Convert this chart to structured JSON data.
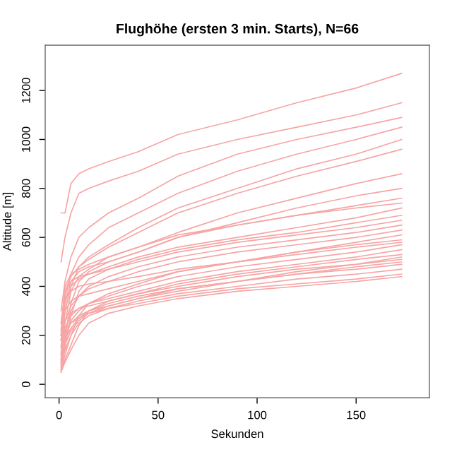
{
  "chart_data": {
    "type": "line",
    "title": "Flughöhe (ersten 3 min. Starts), N=66",
    "xlabel": "Sekunden",
    "ylabel": "Altitude [m]",
    "x": [
      1,
      3,
      6,
      10,
      15,
      25,
      40,
      60,
      90,
      120,
      150,
      173
    ],
    "xlim": [
      -7,
      187
    ],
    "ylim": [
      -55,
      1385
    ],
    "xticks": [
      0,
      50,
      100,
      150
    ],
    "yticks": [
      0,
      200,
      400,
      600,
      800,
      1000,
      1200
    ],
    "grid": false,
    "legend": false,
    "marker": "none",
    "line_style": "solid",
    "series": [
      {
        "color": "#f6a5a5",
        "values": [
          700,
          700,
          820,
          860,
          880,
          910,
          950,
          1020,
          1080,
          1150,
          1210,
          1270
        ]
      },
      {
        "color": "#f6a5a5",
        "values": [
          500,
          600,
          700,
          780,
          800,
          830,
          870,
          940,
          1000,
          1050,
          1100,
          1150
        ]
      },
      {
        "color": "#f6a5a5",
        "values": [
          300,
          420,
          520,
          600,
          640,
          700,
          760,
          850,
          940,
          1000,
          1050,
          1090
        ]
      },
      {
        "color": "#f6a5a5",
        "values": [
          200,
          350,
          450,
          520,
          570,
          640,
          700,
          780,
          870,
          940,
          1000,
          1050
        ]
      },
      {
        "color": "#f6a5a5",
        "values": [
          150,
          300,
          400,
          480,
          520,
          570,
          640,
          720,
          800,
          880,
          940,
          1000
        ]
      },
      {
        "color": "#f6a5a5",
        "values": [
          250,
          380,
          440,
          480,
          510,
          560,
          620,
          700,
          780,
          850,
          910,
          960
        ]
      },
      {
        "color": "#f6a5a5",
        "values": [
          100,
          250,
          380,
          440,
          470,
          520,
          560,
          620,
          700,
          760,
          820,
          860
        ]
      },
      {
        "color": "#f6a5a5",
        "values": [
          180,
          330,
          420,
          460,
          480,
          500,
          540,
          600,
          660,
          720,
          770,
          800
        ]
      },
      {
        "color": "#f6a5a5",
        "values": [
          80,
          200,
          330,
          420,
          460,
          500,
          540,
          600,
          650,
          690,
          730,
          760
        ]
      },
      {
        "color": "#f6a5a5",
        "values": [
          220,
          400,
          450,
          470,
          490,
          520,
          560,
          610,
          650,
          690,
          720,
          740
        ]
      },
      {
        "color": "#f6a5a5",
        "values": [
          120,
          300,
          400,
          430,
          450,
          480,
          520,
          560,
          600,
          640,
          680,
          720
        ]
      },
      {
        "color": "#f6a5a5",
        "values": [
          60,
          150,
          280,
          380,
          430,
          470,
          510,
          550,
          590,
          620,
          660,
          690
        ]
      },
      {
        "color": "#f6a5a5",
        "values": [
          200,
          380,
          420,
          440,
          450,
          470,
          500,
          540,
          580,
          610,
          640,
          670
        ]
      },
      {
        "color": "#f6a5a5",
        "values": [
          90,
          200,
          300,
          360,
          400,
          440,
          480,
          520,
          560,
          590,
          620,
          650
        ]
      },
      {
        "color": "#f6a5a5",
        "values": [
          150,
          260,
          320,
          360,
          390,
          420,
          460,
          500,
          540,
          570,
          600,
          630
        ]
      },
      {
        "color": "#f6a5a5",
        "values": [
          50,
          120,
          200,
          280,
          330,
          370,
          410,
          460,
          500,
          540,
          580,
          610
        ]
      },
      {
        "color": "#f6a5a5",
        "values": [
          180,
          300,
          340,
          360,
          370,
          390,
          420,
          460,
          500,
          540,
          570,
          590
        ]
      },
      {
        "color": "#f6a5a5",
        "values": [
          70,
          180,
          260,
          300,
          330,
          360,
          400,
          440,
          480,
          510,
          540,
          570
        ]
      },
      {
        "color": "#f6a5a5",
        "values": [
          130,
          230,
          280,
          310,
          330,
          350,
          380,
          420,
          460,
          490,
          520,
          550
        ]
      },
      {
        "color": "#f6a5a5",
        "values": [
          60,
          100,
          160,
          240,
          300,
          340,
          370,
          410,
          450,
          480,
          510,
          530
        ]
      },
      {
        "color": "#f6a5a5",
        "values": [
          200,
          260,
          290,
          310,
          320,
          340,
          370,
          400,
          440,
          470,
          490,
          510
        ]
      },
      {
        "color": "#f6a5a5",
        "values": [
          100,
          200,
          250,
          280,
          300,
          320,
          350,
          390,
          420,
          450,
          470,
          490
        ]
      },
      {
        "color": "#f6a5a5",
        "values": [
          80,
          140,
          200,
          250,
          280,
          310,
          340,
          370,
          400,
          430,
          450,
          470
        ]
      },
      {
        "color": "#f6a5a5",
        "values": [
          160,
          220,
          250,
          270,
          290,
          310,
          330,
          360,
          390,
          410,
          430,
          450
        ]
      },
      {
        "color": "#f6a5a5",
        "values": [
          50,
          90,
          140,
          200,
          250,
          290,
          320,
          350,
          380,
          400,
          420,
          440
        ]
      },
      {
        "color": "#f6a5a5",
        "values": [
          250,
          350,
          380,
          400,
          410,
          420,
          440,
          470,
          500,
          530,
          560,
          580
        ]
      },
      {
        "color": "#f6a5a5",
        "values": [
          120,
          180,
          230,
          270,
          300,
          330,
          360,
          390,
          420,
          450,
          480,
          500
        ]
      },
      {
        "color": "#f6a5a5",
        "values": [
          90,
          160,
          220,
          260,
          290,
          320,
          350,
          380,
          420,
          460,
          490,
          520
        ]
      }
    ]
  }
}
